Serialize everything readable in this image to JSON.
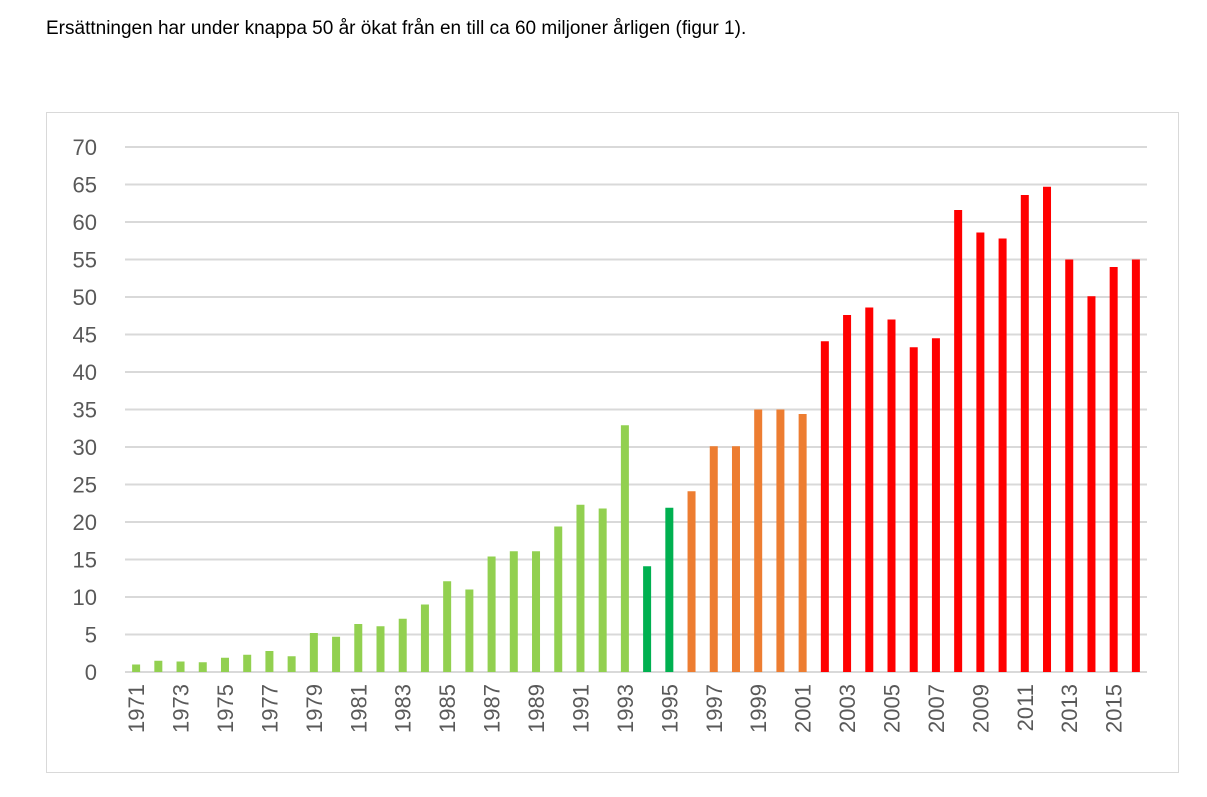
{
  "intro_text": "Ersättningen har under knappa 50 år ökat från en till ca 60 miljoner årligen (figur 1).",
  "colors": {
    "light_green": "#92d050",
    "dark_green": "#00b050",
    "orange": "#ed7d31",
    "red": "#ff0000",
    "grid": "#d9d9d9",
    "axis_text": "#595959"
  },
  "chart_data": {
    "type": "bar",
    "title": "",
    "xlabel": "",
    "ylabel": "",
    "ylim": [
      0,
      70
    ],
    "ytick_step": 5,
    "grid": true,
    "legend": "none",
    "x_tick_labels": [
      "1971",
      "1973",
      "1975",
      "1977",
      "1979",
      "1981",
      "1983",
      "1985",
      "1987",
      "1989",
      "1991",
      "1993",
      "1995",
      "1997",
      "1999",
      "2001",
      "2003",
      "2005",
      "2007",
      "2009",
      "2011",
      "2013",
      "2015"
    ],
    "categories": [
      "1971",
      "1972",
      "1973",
      "1974",
      "1975",
      "1976",
      "1977",
      "1978",
      "1979",
      "1980",
      "1981",
      "1982",
      "1983",
      "1984",
      "1985",
      "1986",
      "1987",
      "1988",
      "1989",
      "1990",
      "1991",
      "1992",
      "1993",
      "1994",
      "1995",
      "1996",
      "1997",
      "1998",
      "1999",
      "2000",
      "2001",
      "2002",
      "2003",
      "2004",
      "2005",
      "2006",
      "2007",
      "2008",
      "2009",
      "2010",
      "2011",
      "2012",
      "2013",
      "2014",
      "2015",
      "2016"
    ],
    "values": [
      1.0,
      1.5,
      1.4,
      1.3,
      1.9,
      2.3,
      2.8,
      2.1,
      5.2,
      4.7,
      6.4,
      6.1,
      7.1,
      9.0,
      12.1,
      11.0,
      15.4,
      16.1,
      16.1,
      19.4,
      22.3,
      21.8,
      32.9,
      14.1,
      21.9,
      24.1,
      30.1,
      30.1,
      35.0,
      35.0,
      34.4,
      44.1,
      47.6,
      48.6,
      47.0,
      43.3,
      44.5,
      61.6,
      58.6,
      57.8,
      63.6,
      64.7,
      55.0,
      50.1,
      54.0,
      55.0
    ],
    "bar_color_keys": [
      "light_green",
      "light_green",
      "light_green",
      "light_green",
      "light_green",
      "light_green",
      "light_green",
      "light_green",
      "light_green",
      "light_green",
      "light_green",
      "light_green",
      "light_green",
      "light_green",
      "light_green",
      "light_green",
      "light_green",
      "light_green",
      "light_green",
      "light_green",
      "light_green",
      "light_green",
      "light_green",
      "dark_green",
      "dark_green",
      "orange",
      "orange",
      "orange",
      "orange",
      "orange",
      "orange",
      "red",
      "red",
      "red",
      "red",
      "red",
      "red",
      "red",
      "red",
      "red",
      "red",
      "red",
      "red",
      "red",
      "red",
      "red"
    ]
  }
}
